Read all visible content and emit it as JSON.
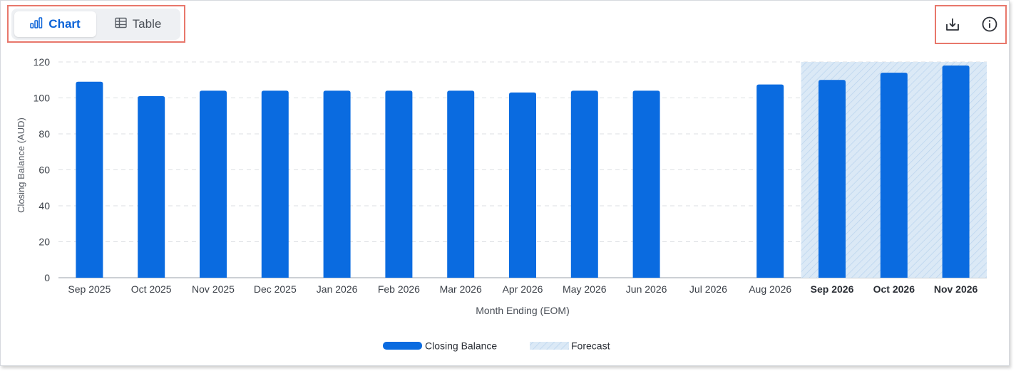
{
  "toolbar": {
    "tabs": [
      {
        "label": "Chart",
        "icon": "bar-chart-icon",
        "active": true
      },
      {
        "label": "Table",
        "icon": "table-icon",
        "active": false
      }
    ],
    "actions": [
      {
        "icon": "download-icon"
      },
      {
        "icon": "info-icon"
      }
    ]
  },
  "colors": {
    "accent": "#0b63d8",
    "bar": "#0a6be0",
    "forecast_fill": "#dbe9f6",
    "forecast_hatch": "#b9d3ee",
    "highlight_frame": "#e8776b"
  },
  "chart_data": {
    "type": "bar",
    "xlabel": "Month Ending (EOM)",
    "ylabel": "Closing Balance (AUD)",
    "ylim": [
      0,
      120
    ],
    "yticks": [
      0,
      20,
      40,
      60,
      80,
      100,
      120
    ],
    "grid": true,
    "categories": [
      "Sep 2025",
      "Oct 2025",
      "Nov 2025",
      "Dec 2025",
      "Jan 2026",
      "Feb 2026",
      "Mar 2026",
      "Apr 2026",
      "May 2026",
      "Jun 2026",
      "Jul 2026",
      "Aug 2026",
      "Sep 2026",
      "Oct 2026",
      "Nov 2026"
    ],
    "series": [
      {
        "name": "Closing Balance",
        "values": [
          109,
          101,
          104,
          104,
          104,
          104,
          104,
          103,
          104,
          104,
          null,
          107.5,
          110,
          114,
          118
        ]
      }
    ],
    "forecast_categories": [
      "Sep 2026",
      "Oct 2026",
      "Nov 2026"
    ],
    "legend": {
      "position": "bottom",
      "items": [
        {
          "label": "Closing Balance",
          "style": "solid"
        },
        {
          "label": "Forecast",
          "style": "hatched"
        }
      ]
    }
  }
}
